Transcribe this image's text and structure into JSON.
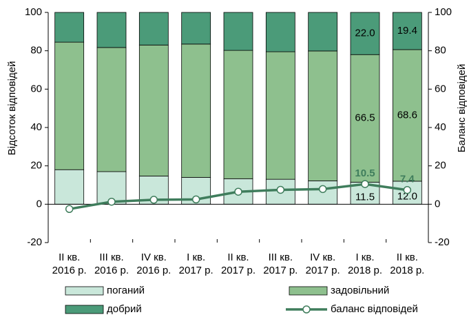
{
  "chart_data": {
    "type": "bar",
    "categories": [
      [
        "II кв.",
        "2016 р."
      ],
      [
        "III кв.",
        "2016 р."
      ],
      [
        "IV кв.",
        "2016 р."
      ],
      [
        "I кв.",
        "2017 р."
      ],
      [
        "II кв.",
        "2017 р."
      ],
      [
        "III кв.",
        "2017 р."
      ],
      [
        "IV кв.",
        "2017 р."
      ],
      [
        "I кв.",
        "2018 р."
      ],
      [
        "II кв.",
        "2018 р."
      ]
    ],
    "stacked": true,
    "series": [
      {
        "name": "поганий",
        "type": "bar",
        "color": "#c9e7da",
        "values": [
          18,
          17,
          14.7,
          14,
          13.3,
          13,
          12.2,
          11.5,
          12.0
        ],
        "value_labels": [
          null,
          null,
          null,
          null,
          null,
          null,
          null,
          "11.5",
          "12.0"
        ]
      },
      {
        "name": "задовільний",
        "type": "bar",
        "color": "#8ec08e",
        "values": [
          66.5,
          64.7,
          68.3,
          69.5,
          66.9,
          66.5,
          67.7,
          66.5,
          68.6
        ],
        "value_labels": [
          null,
          null,
          null,
          null,
          null,
          null,
          null,
          "66.5",
          "68.6"
        ]
      },
      {
        "name": "добрий",
        "type": "bar",
        "color": "#4b9b79",
        "values": [
          15.5,
          18.3,
          17,
          16.5,
          19.8,
          20.5,
          20.1,
          22.0,
          19.4
        ],
        "value_labels": [
          null,
          null,
          null,
          null,
          null,
          null,
          null,
          "22.0",
          "19.4"
        ]
      },
      {
        "name": "баланс відповідей",
        "type": "line",
        "axis": "y2",
        "color": "#3f7d5c",
        "values": [
          -2.5,
          1.3,
          2.3,
          2.5,
          6.5,
          7.5,
          7.9,
          10.5,
          7.4
        ],
        "value_labels": [
          null,
          null,
          null,
          null,
          null,
          null,
          null,
          "10.5",
          "7.4"
        ]
      }
    ],
    "ylabel": "Відсоток відповідей",
    "y2label": "Баланс відповідей",
    "ylim": [
      -20,
      100
    ],
    "yticks": [
      -20,
      0,
      20,
      40,
      60,
      80,
      100
    ],
    "y2lim": [
      -20,
      100
    ],
    "y2ticks": [
      -20,
      0,
      20,
      40,
      60,
      80,
      100
    ],
    "legend": "bottom"
  }
}
